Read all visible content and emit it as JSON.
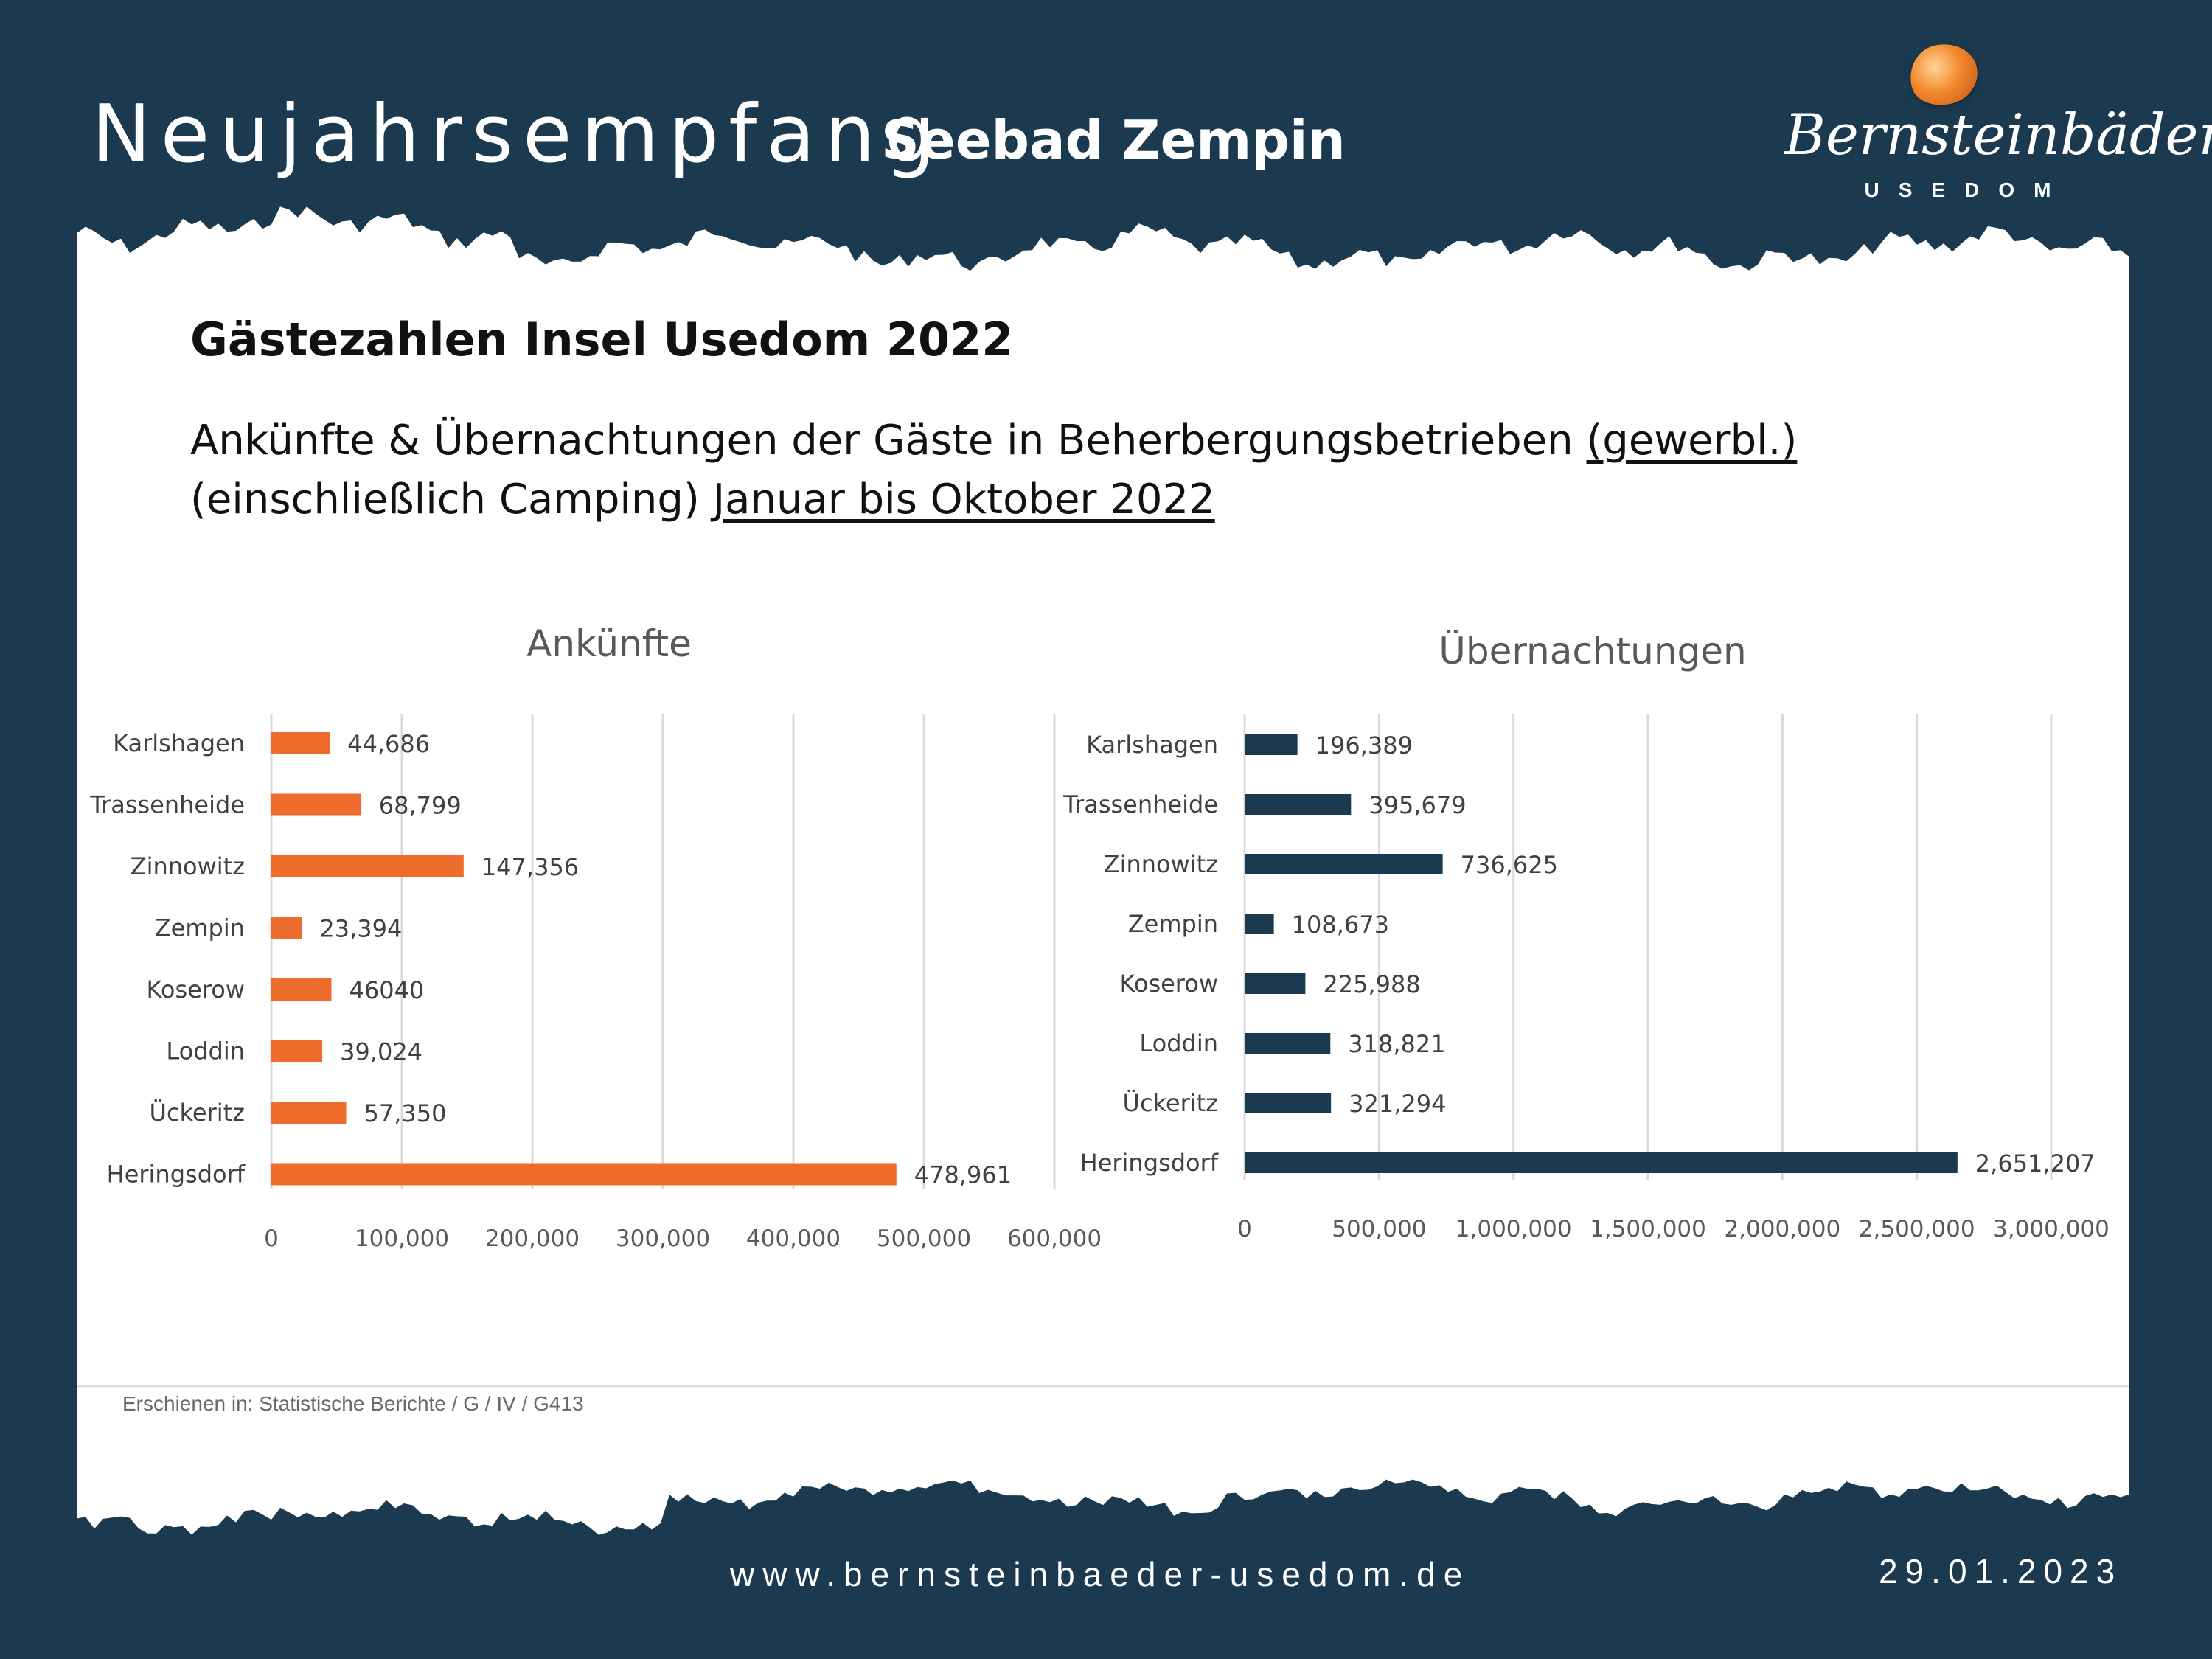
{
  "header": {
    "title": "Neujahrsempfang",
    "subtitle": "Seebad Zempin"
  },
  "logo": {
    "name": "Bernsteinbäder",
    "sub": "USEDOM"
  },
  "content": {
    "heading": "Gästezahlen Insel Usedom 2022",
    "line1_text": "Ankünfte & Übernachtungen der Gäste in Beherbergungsbetrieben ",
    "line1_underlined": "(gewerbl.)",
    "line2_text": "(einschließlich Camping) ",
    "line2_underlined": "Januar bis Oktober 2022",
    "source": "Erschienen in: Statistische Berichte / G / IV / G413"
  },
  "footer": {
    "url": "www.bernsteinbaeder-usedom.de",
    "date": "29.01.2023"
  },
  "colors": {
    "background": "#1b3a4f",
    "arrivals_bar": "#ee6c2b",
    "overnights_bar": "#1b3a4f",
    "grid": "#d9d9d9"
  },
  "chart_data": [
    {
      "type": "bar",
      "orientation": "horizontal",
      "title": "Ankünfte",
      "categories": [
        "Karlshagen",
        "Trassenheide",
        "Zinnowitz",
        "Zempin",
        "Koserow",
        "Loddin",
        "Ückeritz",
        "Heringsdorf"
      ],
      "values": [
        44686,
        68799,
        147356,
        23394,
        46040,
        39024,
        57350,
        478961
      ],
      "data_labels": [
        "44,686",
        "68,799",
        "147,356",
        "23,394",
        "46040",
        "39,024",
        "57,350",
        "478,961"
      ],
      "xlim": [
        0,
        600000
      ],
      "ticks": [
        0,
        100000,
        200000,
        300000,
        400000,
        500000,
        600000
      ],
      "tick_labels": [
        "0",
        "100,000",
        "200,000",
        "300,000",
        "400,000",
        "500,000",
        "600,000"
      ],
      "grid": true
    },
    {
      "type": "bar",
      "orientation": "horizontal",
      "title": "Übernachtungen",
      "categories": [
        "Karlshagen",
        "Trassenheide",
        "Zinnowitz",
        "Zempin",
        "Koserow",
        "Loddin",
        "Ückeritz",
        "Heringsdorf"
      ],
      "values": [
        196389,
        395679,
        736625,
        108673,
        225988,
        318821,
        321294,
        2651207
      ],
      "data_labels": [
        "196,389",
        "395,679",
        "736,625",
        "108,673",
        "225,988",
        "318,821",
        "321,294",
        "2,651,207"
      ],
      "xlim": [
        0,
        3000000
      ],
      "ticks": [
        0,
        500000,
        1000000,
        1500000,
        2000000,
        2500000,
        3000000
      ],
      "tick_labels": [
        "0",
        "500,000",
        "1,000,000",
        "1,500,000",
        "2,000,000",
        "2,500,000",
        "3,000,000"
      ],
      "grid": true
    }
  ]
}
